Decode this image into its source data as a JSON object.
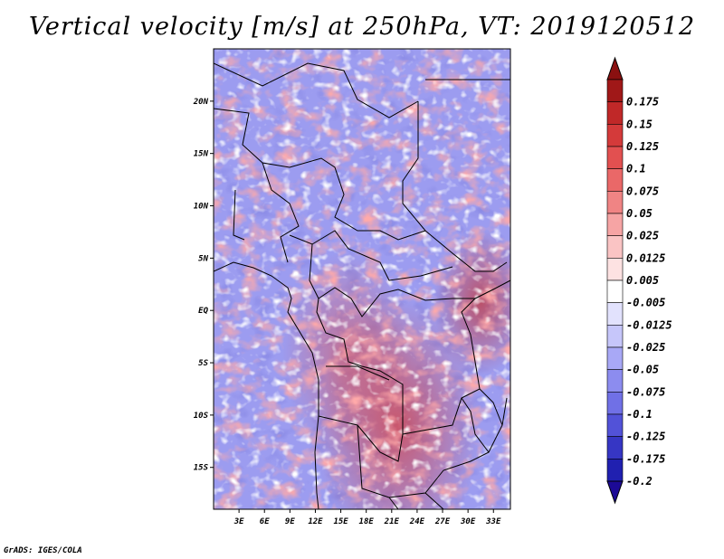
{
  "title": "Vertical velocity [m/s] at 250hPa, VT: 2019120512",
  "credit": "GrADS: IGES/COLA",
  "map": {
    "lon_range": [
      0,
      35
    ],
    "lat_range": [
      -19,
      25
    ],
    "lat_ticks": [
      {
        "value": 20,
        "label": "20N"
      },
      {
        "value": 15,
        "label": "15N"
      },
      {
        "value": 10,
        "label": "10N"
      },
      {
        "value": 5,
        "label": "5N"
      },
      {
        "value": 0,
        "label": "EQ"
      },
      {
        "value": -5,
        "label": "5S"
      },
      {
        "value": -10,
        "label": "10S"
      },
      {
        "value": -15,
        "label": "15S"
      }
    ],
    "lon_ticks": [
      {
        "value": 3,
        "label": "3E"
      },
      {
        "value": 6,
        "label": "6E"
      },
      {
        "value": 9,
        "label": "9E"
      },
      {
        "value": 12,
        "label": "12E"
      },
      {
        "value": 15,
        "label": "15E"
      },
      {
        "value": 18,
        "label": "18E"
      },
      {
        "value": 21,
        "label": "21E"
      },
      {
        "value": 24,
        "label": "24E"
      },
      {
        "value": 27,
        "label": "27E"
      },
      {
        "value": 30,
        "label": "30E"
      },
      {
        "value": 33,
        "label": "33E"
      }
    ]
  },
  "colorbar": {
    "levels": [
      {
        "label": "0.175",
        "color": "#a01818"
      },
      {
        "label": "0.15",
        "color": "#c02828"
      },
      {
        "label": "0.125",
        "color": "#d43a3a"
      },
      {
        "label": "0.1",
        "color": "#e25050"
      },
      {
        "label": "0.075",
        "color": "#ea6868"
      },
      {
        "label": "0.05",
        "color": "#f08484"
      },
      {
        "label": "0.025",
        "color": "#f6a4a4"
      },
      {
        "label": "0.0125",
        "color": "#fac4c4"
      },
      {
        "label": "0.005",
        "color": "#fde2e2"
      },
      {
        "label": "-0.005",
        "color": "#ffffff"
      },
      {
        "label": "-0.0125",
        "color": "#e2e2fd"
      },
      {
        "label": "-0.025",
        "color": "#c6c6fa"
      },
      {
        "label": "-0.05",
        "color": "#a8a8f6"
      },
      {
        "label": "-0.075",
        "color": "#8c8cef"
      },
      {
        "label": "-0.1",
        "color": "#7070e6"
      },
      {
        "label": "-0.125",
        "color": "#5252d8"
      },
      {
        "label": "-0.175",
        "color": "#3636c4"
      },
      {
        "label": "-0.2",
        "color": "#2020b0"
      }
    ],
    "top_arrow_color": "#8a1010",
    "bottom_arrow_color": "#1c0a96",
    "extra_swatch_color": "#1c12a8"
  }
}
